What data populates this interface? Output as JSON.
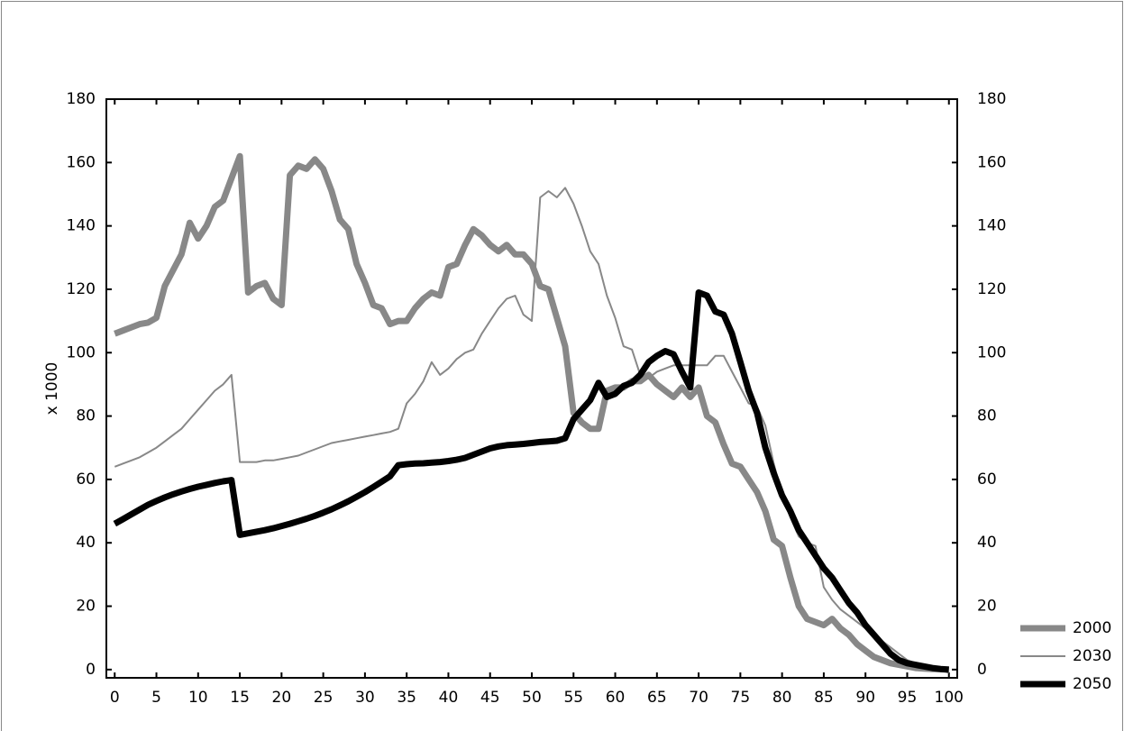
{
  "chart_data": {
    "type": "line",
    "ylabel": "x 1000",
    "x": [
      0,
      1,
      2,
      3,
      4,
      5,
      6,
      7,
      8,
      9,
      10,
      11,
      12,
      13,
      14,
      15,
      16,
      17,
      18,
      19,
      20,
      21,
      22,
      23,
      24,
      25,
      26,
      27,
      28,
      29,
      30,
      31,
      32,
      33,
      34,
      35,
      36,
      37,
      38,
      39,
      40,
      41,
      42,
      43,
      44,
      45,
      46,
      47,
      48,
      49,
      50,
      51,
      52,
      53,
      54,
      55,
      56,
      57,
      58,
      59,
      60,
      61,
      62,
      63,
      64,
      65,
      66,
      67,
      68,
      69,
      70,
      71,
      72,
      73,
      74,
      75,
      76,
      77,
      78,
      79,
      80,
      81,
      82,
      83,
      84,
      85,
      86,
      87,
      88,
      89,
      90,
      91,
      92,
      93,
      94,
      95,
      96,
      97,
      98,
      99,
      100
    ],
    "series": [
      {
        "name": "2000",
        "color": "#888888",
        "line_width": 7,
        "values": [
          106,
          107,
          108,
          109,
          109.5,
          111,
          121,
          126,
          131,
          141,
          136,
          140,
          146,
          148,
          155,
          162,
          119,
          121,
          122,
          117,
          115,
          156,
          159,
          158,
          161,
          158,
          151,
          142,
          139,
          128,
          122,
          115,
          114,
          109,
          110,
          110,
          114,
          117,
          119,
          118,
          127,
          128,
          134,
          139,
          137,
          134,
          132,
          134,
          131,
          131,
          128,
          121,
          120,
          111,
          102,
          81,
          78,
          76,
          76,
          88,
          89,
          89,
          91,
          91,
          93,
          90,
          88,
          86,
          89,
          86,
          89,
          80,
          78,
          71,
          65,
          64,
          60,
          56,
          50,
          41,
          39,
          29,
          20,
          16,
          15,
          14,
          16,
          13,
          11,
          8,
          6,
          4,
          3,
          2,
          1.5,
          1,
          0.5,
          0.3,
          0.2,
          0.1,
          0
        ]
      },
      {
        "name": "2030",
        "color": "#888888",
        "line_width": 2,
        "values": [
          64,
          65,
          66,
          67,
          68.5,
          70,
          72,
          74,
          76,
          79,
          82,
          85,
          88,
          90,
          93,
          65.5,
          65.5,
          65.5,
          66,
          66,
          66.5,
          67,
          67.5,
          68.5,
          69.5,
          70.5,
          71.5,
          72,
          72.5,
          73,
          73.5,
          74,
          74.5,
          75,
          76,
          84,
          87,
          91,
          97,
          93,
          95,
          98,
          100,
          101,
          106,
          110,
          114,
          117,
          118,
          112,
          110,
          149,
          151,
          149,
          152,
          147,
          140,
          132,
          128,
          118,
          111,
          102,
          101,
          93,
          92,
          94,
          95,
          96,
          96,
          96,
          96,
          96,
          99,
          99,
          94,
          89,
          84,
          83,
          77,
          65,
          55,
          48,
          42,
          40,
          39,
          26,
          22,
          19,
          17,
          15,
          13,
          11,
          9,
          7,
          5,
          3,
          2,
          1,
          0.5,
          0,
          -1
        ]
      },
      {
        "name": "2050",
        "color": "#000000",
        "line_width": 7,
        "values": [
          46,
          47.5,
          49,
          50.5,
          52,
          53.2,
          54.3,
          55.3,
          56.2,
          57,
          57.7,
          58.3,
          58.9,
          59.4,
          59.8,
          42.5,
          43,
          43.5,
          44,
          44.6,
          45.3,
          46,
          46.8,
          47.6,
          48.5,
          49.5,
          50.6,
          51.8,
          53.1,
          54.5,
          56,
          57.6,
          59.3,
          61,
          64.5,
          64.8,
          65,
          65.1,
          65.3,
          65.5,
          65.8,
          66.2,
          66.8,
          67.8,
          68.8,
          69.8,
          70.4,
          70.8,
          71,
          71.2,
          71.5,
          71.8,
          72,
          72.2,
          73,
          79,
          82,
          85,
          90.5,
          86,
          87,
          89.5,
          90.5,
          93,
          97,
          99,
          100.5,
          99.5,
          94,
          89,
          119,
          118,
          113,
          112,
          106,
          97,
          88,
          81,
          70,
          62,
          55,
          50,
          44,
          40,
          36,
          32,
          29,
          25,
          21,
          18,
          14,
          11,
          8,
          5,
          3,
          2,
          1.5,
          1,
          0.5,
          0.2,
          0
        ]
      }
    ],
    "xlim": [
      -1,
      101
    ],
    "ylim": [
      -2.6,
      180
    ],
    "xticks": [
      0,
      5,
      10,
      15,
      20,
      25,
      30,
      35,
      40,
      45,
      50,
      55,
      60,
      65,
      70,
      75,
      80,
      85,
      90,
      95,
      100
    ],
    "yticks": [
      0,
      20,
      40,
      60,
      80,
      100,
      120,
      140,
      160,
      180
    ],
    "legend": "lower right"
  }
}
